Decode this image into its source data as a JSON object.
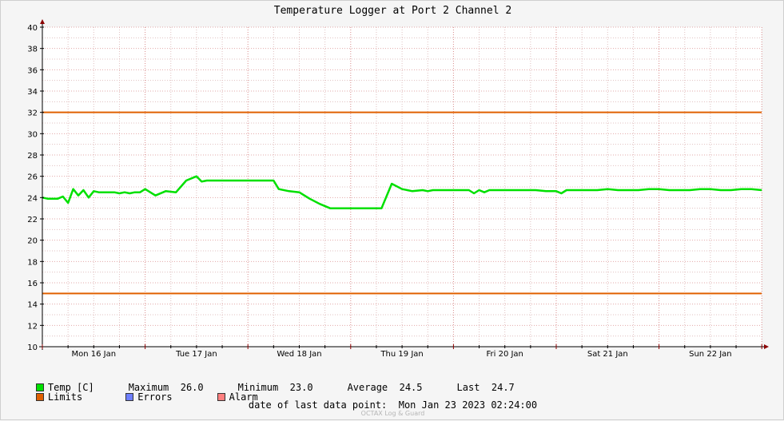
{
  "title": "Temperature Logger at Port 2 Channel 2",
  "colors": {
    "temp": "#00e000",
    "limits": "#e06000",
    "errors": "#6f7fff",
    "alarm": "#ff7f7f",
    "grid_minor": "#e0c0c0",
    "grid_major": "#d07070",
    "background": "#ffffff"
  },
  "chart_data": {
    "type": "line",
    "ylim": [
      10,
      40
    ],
    "yticks": [
      "10",
      "12",
      "14",
      "16",
      "18",
      "20",
      "22",
      "24",
      "26",
      "28",
      "30",
      "32",
      "34",
      "36",
      "38",
      "40"
    ],
    "xlim": [
      0,
      7
    ],
    "xtick_labels": [
      "Mon 16 Jan",
      "Tue 17 Jan",
      "Wed 18 Jan",
      "Thu 19 Jan",
      "Fri 20 Jan",
      "Sat 21 Jan",
      "Sun 22 Jan"
    ],
    "limits": [
      32,
      15
    ],
    "series": [
      {
        "name": "Temp [C]",
        "x": [
          0.0,
          0.05,
          0.1,
          0.15,
          0.2,
          0.25,
          0.3,
          0.35,
          0.4,
          0.45,
          0.5,
          0.55,
          0.6,
          0.65,
          0.7,
          0.75,
          0.8,
          0.85,
          0.9,
          0.95,
          1.0,
          1.1,
          1.2,
          1.3,
          1.4,
          1.5,
          1.55,
          1.6,
          1.65,
          1.7,
          1.75,
          1.8,
          1.85,
          1.9,
          1.95,
          2.0,
          2.05,
          2.1,
          2.15,
          2.2,
          2.25,
          2.3,
          2.4,
          2.5,
          2.6,
          2.7,
          2.8,
          2.85,
          2.9,
          2.95,
          3.0,
          3.1,
          3.2,
          3.3,
          3.4,
          3.5,
          3.6,
          3.7,
          3.75,
          3.8,
          3.85,
          3.9,
          3.95,
          4.0,
          4.05,
          4.1,
          4.15,
          4.2,
          4.25,
          4.3,
          4.35,
          4.4,
          4.5,
          4.6,
          4.7,
          4.8,
          4.9,
          5.0,
          5.05,
          5.1,
          5.15,
          5.2,
          5.3,
          5.4,
          5.5,
          5.6,
          5.7,
          5.8,
          5.9,
          6.0,
          6.1,
          6.2,
          6.3,
          6.4,
          6.5,
          6.6,
          6.7,
          6.8,
          6.9,
          7.0
        ],
        "y": [
          24.0,
          23.9,
          23.9,
          23.9,
          24.1,
          23.5,
          24.8,
          24.2,
          24.7,
          24.0,
          24.6,
          24.5,
          24.5,
          24.5,
          24.5,
          24.4,
          24.5,
          24.4,
          24.5,
          24.5,
          24.8,
          24.2,
          24.6,
          24.5,
          25.6,
          26.0,
          25.5,
          25.6,
          25.6,
          25.6,
          25.6,
          25.6,
          25.6,
          25.6,
          25.6,
          25.6,
          25.6,
          25.6,
          25.6,
          25.6,
          25.6,
          24.8,
          24.6,
          24.5,
          23.9,
          23.4,
          23.0,
          23.0,
          23.0,
          23.0,
          23.0,
          23.0,
          23.0,
          23.0,
          25.3,
          24.8,
          24.6,
          24.7,
          24.6,
          24.7,
          24.7,
          24.7,
          24.7,
          24.7,
          24.7,
          24.7,
          24.7,
          24.4,
          24.7,
          24.5,
          24.7,
          24.7,
          24.7,
          24.7,
          24.7,
          24.7,
          24.6,
          24.6,
          24.4,
          24.7,
          24.7,
          24.7,
          24.7,
          24.7,
          24.8,
          24.7,
          24.7,
          24.7,
          24.8,
          24.8,
          24.7,
          24.7,
          24.7,
          24.8,
          24.8,
          24.7,
          24.7,
          24.8,
          24.8,
          24.7
        ]
      }
    ]
  },
  "legend": {
    "temp_label": "Temp [C]",
    "max_label": "Maximum",
    "max_value": "26.0",
    "min_label": "Minimum",
    "min_value": "23.0",
    "avg_label": "Average",
    "avg_value": "24.5",
    "last_label": "Last",
    "last_value": "24.7",
    "limits_label": "Limits",
    "errors_label": "Errors",
    "alarm_label": "Alarm"
  },
  "footer": {
    "label": "date of last data point:",
    "value": "Mon Jan 23 2023 02:24:00"
  },
  "credit": "OCTAX Log & Guard"
}
